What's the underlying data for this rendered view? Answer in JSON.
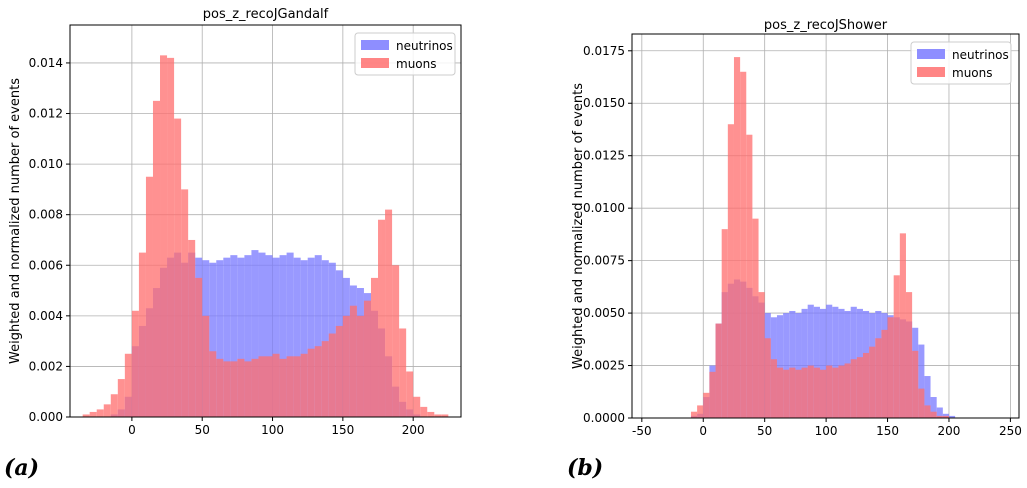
{
  "panel_labels": [
    "(a)",
    "(b)"
  ],
  "chart_data": [
    {
      "type": "histogram",
      "title": "pos_z_recoJGandalf",
      "ylabel": "Weighted and normalized number of events",
      "xlabel": "",
      "xlim": [
        -44,
        234
      ],
      "ylim": [
        0,
        0.0155
      ],
      "xticks": [
        0,
        50,
        100,
        150,
        200
      ],
      "xtick_labels": [
        "0",
        "50",
        "100",
        "150",
        "200"
      ],
      "yticks": [
        0,
        0.002,
        0.004,
        0.006,
        0.008,
        0.01,
        0.012,
        0.014
      ],
      "ytick_labels": [
        "0.000",
        "0.002",
        "0.004",
        "0.006",
        "0.008",
        "0.010",
        "0.012",
        "0.014"
      ],
      "grid": true,
      "legend": "top-right",
      "bin_edges": [
        -35,
        -30,
        -25,
        -20,
        -15,
        -10,
        -5,
        0,
        5,
        10,
        15,
        20,
        25,
        30,
        35,
        40,
        45,
        50,
        55,
        60,
        65,
        70,
        75,
        80,
        85,
        90,
        95,
        100,
        105,
        110,
        115,
        120,
        125,
        130,
        135,
        140,
        145,
        150,
        155,
        160,
        165,
        170,
        175,
        180,
        185,
        190,
        195,
        200,
        205,
        210,
        215,
        220,
        225
      ],
      "series": [
        {
          "name": "neutrinos",
          "color": "#7a7aff",
          "values": [
            0,
            0,
            0,
            0,
            0.0001,
            0.0003,
            0.0008,
            0.0028,
            0.0036,
            0.0043,
            0.0051,
            0.0059,
            0.0063,
            0.0065,
            0.0061,
            0.0065,
            0.0063,
            0.0062,
            0.0061,
            0.0062,
            0.0063,
            0.0064,
            0.0063,
            0.0064,
            0.0066,
            0.0065,
            0.0064,
            0.0063,
            0.0064,
            0.0065,
            0.0063,
            0.0062,
            0.0063,
            0.0064,
            0.0062,
            0.0061,
            0.0058,
            0.0055,
            0.0052,
            0.0051,
            0.0049,
            0.0042,
            0.0035,
            0.0024,
            0.0012,
            0.0006,
            0.0003,
            0.0001,
            0,
            0,
            0,
            0
          ]
        },
        {
          "name": "muons",
          "color": "#ff7070",
          "values": [
            0.0001,
            0.0002,
            0.0003,
            0.0005,
            0.0009,
            0.0015,
            0.0025,
            0.0042,
            0.0065,
            0.0095,
            0.0125,
            0.0143,
            0.0142,
            0.0118,
            0.009,
            0.007,
            0.0055,
            0.004,
            0.0026,
            0.0023,
            0.0022,
            0.0022,
            0.0023,
            0.0022,
            0.0023,
            0.0024,
            0.0024,
            0.0025,
            0.0023,
            0.0024,
            0.0024,
            0.0025,
            0.0027,
            0.0028,
            0.003,
            0.0033,
            0.0036,
            0.004,
            0.0044,
            0.004,
            0.0046,
            0.0055,
            0.0078,
            0.0082,
            0.006,
            0.0035,
            0.0018,
            0.0008,
            0.0004,
            0.0002,
            0.0001,
            0.0001
          ]
        }
      ]
    },
    {
      "type": "histogram",
      "title": "pos_z_recoJShower",
      "ylabel": "Weighted and normalized number of events",
      "xlabel": "",
      "xlim": [
        -58,
        257
      ],
      "ylim": [
        0,
        0.0183
      ],
      "xticks": [
        -50,
        0,
        50,
        100,
        150,
        200,
        250
      ],
      "xtick_labels": [
        "-50",
        "0",
        "50",
        "100",
        "150",
        "200",
        "250"
      ],
      "yticks": [
        0,
        0.0025,
        0.005,
        0.0075,
        0.01,
        0.0125,
        0.015,
        0.0175
      ],
      "ytick_labels": [
        "0.0000",
        "0.0025",
        "0.0050",
        "0.0075",
        "0.0100",
        "0.0125",
        "0.0150",
        "0.0175"
      ],
      "grid": true,
      "legend": "top-right",
      "bin_edges": [
        -10,
        -5,
        0,
        5,
        10,
        15,
        20,
        25,
        30,
        35,
        40,
        45,
        50,
        55,
        60,
        65,
        70,
        75,
        80,
        85,
        90,
        95,
        100,
        105,
        110,
        115,
        120,
        125,
        130,
        135,
        140,
        145,
        150,
        155,
        160,
        165,
        170,
        175,
        180,
        185,
        190,
        195,
        200,
        205,
        210
      ],
      "series": [
        {
          "name": "neutrinos",
          "color": "#7a7aff",
          "values": [
            0.0001,
            0.0002,
            0.001,
            0.0025,
            0.0045,
            0.006,
            0.0064,
            0.0066,
            0.0065,
            0.0062,
            0.0058,
            0.0055,
            0.005,
            0.0048,
            0.0049,
            0.005,
            0.0051,
            0.005,
            0.0052,
            0.0054,
            0.0053,
            0.0052,
            0.0054,
            0.0053,
            0.0052,
            0.0051,
            0.0053,
            0.0052,
            0.0051,
            0.005,
            0.0051,
            0.005,
            0.0049,
            0.0048,
            0.0047,
            0.0046,
            0.0043,
            0.0035,
            0.002,
            0.001,
            0.0005,
            0.0002,
            0.0001,
            0
          ]
        },
        {
          "name": "muons",
          "color": "#ff7070",
          "values": [
            0.0003,
            0.0006,
            0.0012,
            0.0022,
            0.0045,
            0.009,
            0.014,
            0.0172,
            0.0165,
            0.0135,
            0.0095,
            0.006,
            0.0038,
            0.0028,
            0.0024,
            0.0023,
            0.0024,
            0.0023,
            0.0024,
            0.0025,
            0.0024,
            0.0023,
            0.0025,
            0.0024,
            0.0025,
            0.0026,
            0.0028,
            0.0029,
            0.0031,
            0.0034,
            0.0038,
            0.0042,
            0.0048,
            0.0068,
            0.0088,
            0.006,
            0.0032,
            0.0014,
            0.0006,
            0.0003,
            0.0001,
            0.0001,
            0,
            0
          ]
        }
      ]
    }
  ]
}
